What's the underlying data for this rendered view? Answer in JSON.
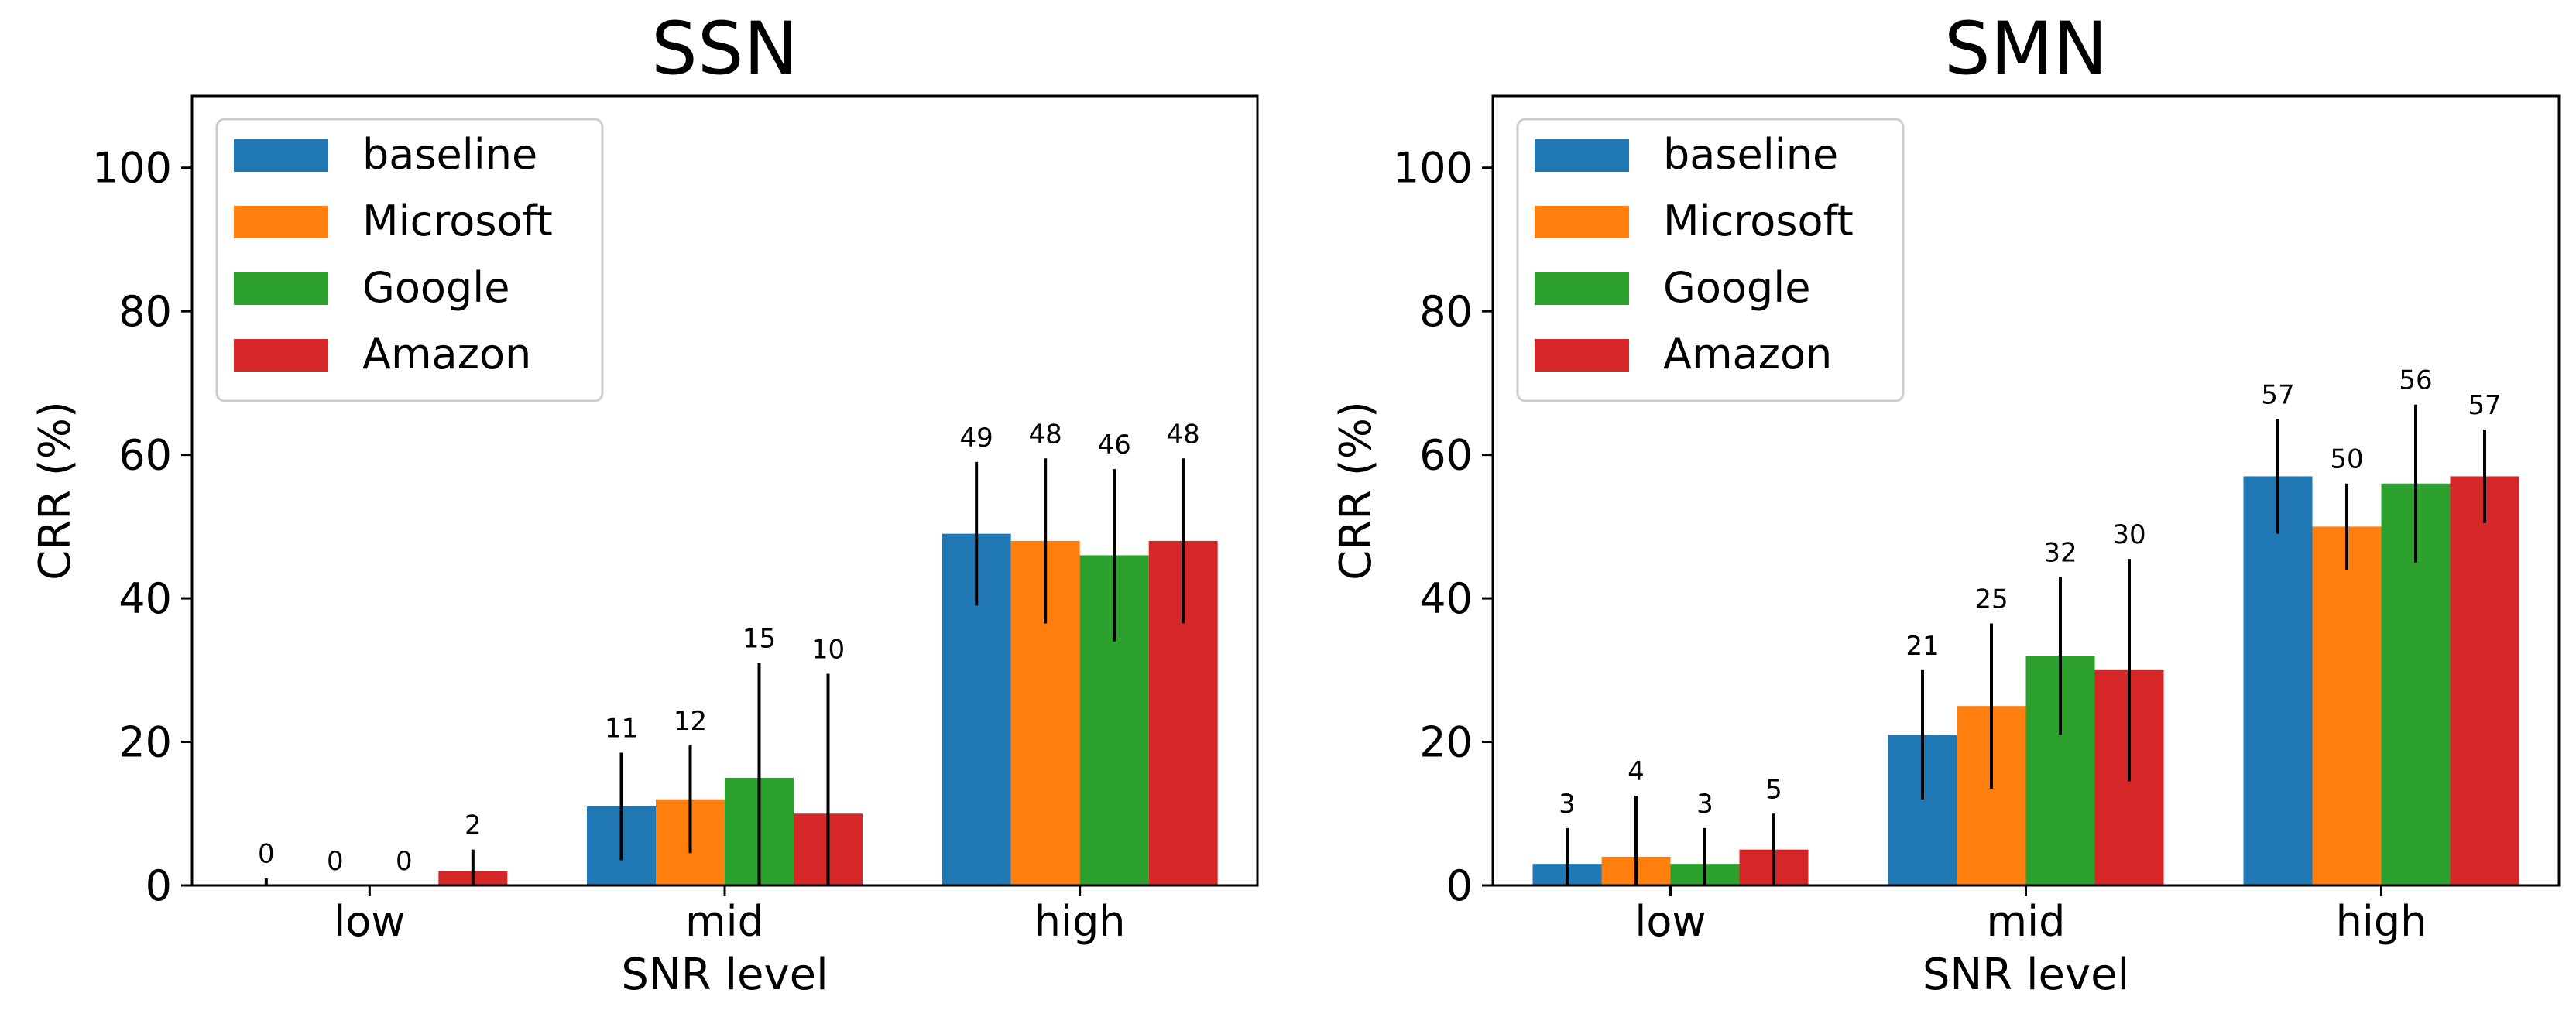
{
  "chart_data": [
    {
      "type": "bar",
      "title": "SSN",
      "xlabel": "SNR level",
      "ylabel": "CRR (%)",
      "ylim": [
        0,
        110
      ],
      "yticks": [
        0,
        20,
        40,
        60,
        80,
        100
      ],
      "categories": [
        "low",
        "mid",
        "high"
      ],
      "legend_position": "top-left",
      "series": [
        {
          "name": "baseline",
          "color": "#1f77b4",
          "values": [
            0,
            11,
            49
          ],
          "labels": [
            "0",
            "11",
            "49"
          ],
          "errors": [
            1,
            7.5,
            10
          ]
        },
        {
          "name": "Microsoft",
          "color": "#ff7f0e",
          "values": [
            0,
            12,
            48
          ],
          "labels": [
            "0",
            "12",
            "48"
          ],
          "errors": [
            0,
            7.5,
            11.5
          ]
        },
        {
          "name": "Google",
          "color": "#2ca02c",
          "values": [
            0,
            15,
            46
          ],
          "labels": [
            "0",
            "15",
            "46"
          ],
          "errors": [
            0,
            16,
            12
          ]
        },
        {
          "name": "Amazon",
          "color": "#d62728",
          "values": [
            2,
            10,
            48
          ],
          "labels": [
            "2",
            "10",
            "48"
          ],
          "errors": [
            3,
            19.5,
            11.5
          ]
        }
      ]
    },
    {
      "type": "bar",
      "title": "SMN",
      "xlabel": "SNR level",
      "ylabel": "CRR (%)",
      "ylim": [
        0,
        110
      ],
      "yticks": [
        0,
        20,
        40,
        60,
        80,
        100
      ],
      "categories": [
        "low",
        "mid",
        "high"
      ],
      "legend_position": "top-left",
      "series": [
        {
          "name": "baseline",
          "color": "#1f77b4",
          "values": [
            3,
            21,
            57
          ],
          "labels": [
            "3",
            "21",
            "57"
          ],
          "errors": [
            5,
            9,
            8
          ]
        },
        {
          "name": "Microsoft",
          "color": "#ff7f0e",
          "values": [
            4,
            25,
            50
          ],
          "labels": [
            "4",
            "25",
            "50"
          ],
          "errors": [
            8.5,
            11.5,
            6
          ]
        },
        {
          "name": "Google",
          "color": "#2ca02c",
          "values": [
            3,
            32,
            56
          ],
          "labels": [
            "3",
            "32",
            "56"
          ],
          "errors": [
            5,
            11,
            11
          ]
        },
        {
          "name": "Amazon",
          "color": "#d62728",
          "values": [
            5,
            30,
            57
          ],
          "labels": [
            "5",
            "30",
            "57"
          ],
          "errors": [
            5,
            15.5,
            6.5
          ]
        }
      ]
    }
  ]
}
